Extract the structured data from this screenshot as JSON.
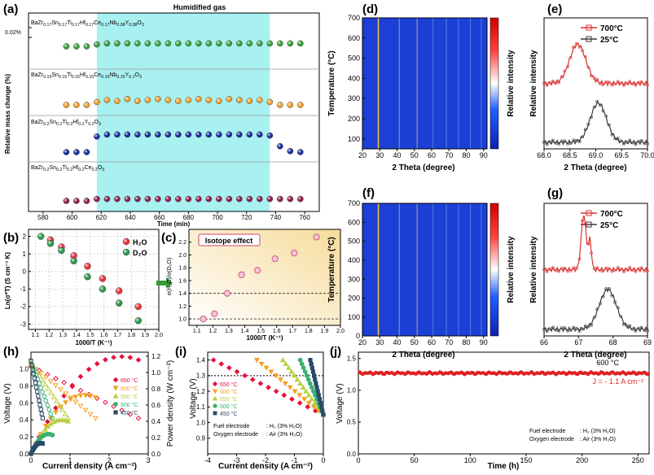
{
  "panels": {
    "a": "(a)",
    "b": "(b)",
    "c": "(c)",
    "d": "(d)",
    "e": "(e)",
    "f": "(f)",
    "g": "(g)",
    "h": "(h)",
    "i": "(i)",
    "j": "(j)"
  },
  "colors": {
    "a_green": "#3aa23a",
    "a_orange": "#f0a030",
    "a_blue": "#1a2f9e",
    "a_maroon": "#8e1f4e",
    "humid_band": "#a9f1f1",
    "heat_bg": "#1c3fd6",
    "h2o": "#e8343a",
    "d2o": "#2e9a4f",
    "c_marker": "#d86a8a",
    "e_low": "#3a3a3a",
    "e_high": "#d83030",
    "f650": "#e8103c",
    "f600": "#f5a020",
    "f550": "#b8d040",
    "f500": "#3ab070",
    "f450": "#2a4a6a",
    "j_line": "#e02020"
  },
  "chart_data": [
    {
      "panel": "a",
      "type": "scatter",
      "title": "Humidified gas",
      "xlabel": "Time (min)",
      "ylabel": "Relative mass change (%)",
      "xlim": [
        570,
        770
      ],
      "xticks": [
        580,
        600,
        620,
        640,
        660,
        680,
        700,
        720,
        740,
        760
      ],
      "scale_label": "0.02%",
      "humid_range": [
        617,
        736
      ],
      "series": [
        {
          "name": "BaZr0.17Sn0.17Ti0.17Hf0.17Ce0.17Nb0.08Y0.08O3",
          "base": "BaZr",
          "sub": "0.17",
          "rest": "Sn|0.17|Ti|0.17|Hf|0.17|Ce|0.17|Nb|0.08|Y|0.08|O|3",
          "color": "a_green",
          "x": [
            596,
            603,
            610,
            617,
            624,
            631,
            638,
            645,
            652,
            659,
            666,
            673,
            680,
            687,
            694,
            701,
            708,
            715,
            722,
            729,
            736,
            743,
            750,
            757
          ],
          "y": [
            0,
            0,
            0,
            0.2,
            0.3,
            0.3,
            0.3,
            0.3,
            0.3,
            0.3,
            0.3,
            0.3,
            0.3,
            0.3,
            0.3,
            0.3,
            0.3,
            0.3,
            0.3,
            0.3,
            0.3,
            0.3,
            0.3,
            0.3
          ]
        },
        {
          "name": "BaZr0.15Sn0.15Ti0.15Hf0.15Ce0.15Nb0.15Y0.1O3",
          "base": "BaZr",
          "sub": "0.15",
          "rest": "Sn|0.15|Ti|0.15|Hf|0.15|Ce|0.15|Nb|0.15|Y|0.1|O|3",
          "color": "a_orange",
          "x": [
            596,
            603,
            610,
            617,
            624,
            631,
            638,
            645,
            652,
            659,
            666,
            673,
            680,
            687,
            694,
            701,
            708,
            715,
            722,
            729,
            736,
            743,
            750,
            757
          ],
          "y": [
            0,
            0,
            0,
            0.3,
            0.5,
            0.4,
            0.6,
            0.4,
            0.5,
            0.6,
            0.5,
            0.4,
            0.5,
            0.6,
            0.5,
            0.4,
            0.6,
            0.5,
            0.4,
            0.5,
            0.3,
            0,
            0,
            0
          ]
        },
        {
          "name": "BaZr0.2Sn0.2Ti0.2Hf0.2Y0.2O3",
          "base": "BaZr",
          "sub": "0.2",
          "rest": "Sn|0.2|Ti|0.2|Hf|0.2|Y|0.2|O|3",
          "color": "a_blue",
          "x": [
            596,
            603,
            610,
            617,
            624,
            631,
            638,
            645,
            652,
            659,
            666,
            673,
            680,
            687,
            694,
            701,
            708,
            715,
            722,
            729,
            736,
            743,
            750,
            757
          ],
          "y": [
            0,
            0,
            0,
            1.6,
            1.8,
            1.8,
            1.8,
            1.8,
            1.8,
            1.8,
            1.8,
            1.8,
            1.8,
            1.8,
            1.8,
            1.8,
            1.8,
            1.8,
            1.8,
            1.8,
            1.7,
            0.6,
            0.1,
            0
          ]
        },
        {
          "name": "BaZr0.2Sn0.2Ti0.2Hf0.2Ce0.2O3",
          "base": "BaZr",
          "sub": "0.2",
          "rest": "Sn|0.2|Ti|0.2|Hf|0.2|Ce|0.2|O|3",
          "color": "a_maroon",
          "x": [
            596,
            603,
            610,
            617,
            624,
            631,
            638,
            645,
            652,
            659,
            666,
            673,
            680,
            687,
            694,
            701,
            708,
            715,
            722,
            729,
            736,
            743,
            750,
            757
          ],
          "y": [
            0,
            0,
            0,
            0.2,
            0.2,
            0.2,
            0.2,
            0.2,
            0.2,
            0.2,
            0.2,
            0.2,
            0.2,
            0.2,
            0.2,
            0.2,
            0.2,
            0.2,
            0.2,
            0.2,
            0.2,
            0.2,
            0.2,
            0.2
          ]
        }
      ]
    },
    {
      "panel": "b",
      "type": "scatter",
      "xlabel": "1000/T (K⁻¹)",
      "ylabel": "Ln(σ*T) (S cm⁻¹ K)",
      "xlim": [
        1.05,
        2.0
      ],
      "ylim": [
        -3.3,
        2.4
      ],
      "xticks": [
        "1.1",
        "1.2",
        "1.3",
        "1.4",
        "1.5",
        "1.6",
        "1.7",
        "1.8",
        "1.9",
        "2.0"
      ],
      "yticks": [
        "-3",
        "-2",
        "-1",
        "0",
        "1",
        "2"
      ],
      "series": [
        {
          "name": "H₂O",
          "color": "h2o",
          "x": [
            1.21,
            1.29,
            1.38,
            1.48,
            1.59,
            1.71,
            1.85
          ],
          "y": [
            1.8,
            1.4,
            0.9,
            0.3,
            -0.4,
            -1.1,
            -2.0
          ]
        },
        {
          "name": "D₂O",
          "color": "d2o",
          "x": [
            1.14,
            1.21,
            1.29,
            1.38,
            1.48,
            1.59,
            1.71,
            1.85
          ],
          "y": [
            2.0,
            1.6,
            1.2,
            0.6,
            -0.3,
            -1.0,
            -1.8,
            -2.8
          ]
        }
      ]
    },
    {
      "panel": "c",
      "type": "scatter",
      "title": "Isotope effect",
      "xlabel": "1000/T (K⁻¹)",
      "ylabel": "σ(H₂O)/σ(D₂O)",
      "xlim": [
        1.05,
        2.0
      ],
      "ylim": [
        0.9,
        2.4
      ],
      "xticks": [
        "1.1",
        "1.2",
        "1.3",
        "1.4",
        "1.5",
        "1.6",
        "1.7",
        "1.8",
        "1.9",
        "2.0"
      ],
      "yticks": [
        "1.0",
        "1.2",
        "1.4",
        "1.6",
        "1.8",
        "2.0",
        "2.2"
      ],
      "hlines": [
        1.0,
        1.4
      ],
      "x": [
        1.14,
        1.21,
        1.29,
        1.38,
        1.48,
        1.59,
        1.71,
        1.85
      ],
      "y": [
        1.0,
        1.08,
        1.4,
        1.69,
        1.76,
        1.94,
        2.03,
        2.28
      ]
    },
    {
      "panel": "d",
      "type": "heatmap",
      "xlabel": "2 Theta (degree)",
      "ylabel": "Temperature (°C)",
      "colorbar": "Relative intensity",
      "xlim": [
        20,
        92
      ],
      "ylim": [
        50,
        700
      ],
      "xticks": [
        "20",
        "30",
        "40",
        "50",
        "60",
        "70",
        "80",
        "90"
      ],
      "yticks": [
        "100",
        "200",
        "300",
        "400",
        "500",
        "600",
        "700"
      ],
      "peaks": [
        29.2,
        41.3,
        51.6,
        60.8,
        68.5,
        75.5,
        82.4,
        88.7
      ],
      "peak_strength": [
        1.0,
        0.45,
        0.55,
        0.2,
        0.3,
        0.2,
        0.15,
        0.15
      ]
    },
    {
      "panel": "e",
      "type": "line",
      "xlabel": "2 Theta (degree)",
      "ylabel": "Relative intensity",
      "xlim": [
        68.0,
        70.0
      ],
      "xticks": [
        "68.0",
        "68.5",
        "69.0",
        "69.5",
        "70.0"
      ],
      "series": [
        {
          "name": "25°C",
          "color": "e_low",
          "center": 69.05,
          "width": 0.22,
          "offset": 0.05,
          "height": 0.3
        },
        {
          "name": "700°C",
          "color": "e_high",
          "center": 68.65,
          "width": 0.22,
          "offset": 0.5,
          "height": 0.3
        }
      ]
    },
    {
      "panel": "f",
      "type": "heatmap",
      "xlabel": "2 Theta (degree)",
      "ylabel": "Temperature (°C)",
      "colorbar": "Relative intensity",
      "xlim": [
        20,
        92
      ],
      "ylim": [
        0,
        700
      ],
      "xticks": [
        "20",
        "30",
        "40",
        "50",
        "60",
        "70",
        "80",
        "90"
      ],
      "yticks": [
        "0",
        "100",
        "200",
        "300",
        "400",
        "500",
        "600",
        "700"
      ],
      "peaks": [
        29.2,
        41.3,
        51.6,
        60.8,
        68.5,
        75.5,
        82.4,
        88.7
      ],
      "peak_strength": [
        1.0,
        0.45,
        0.55,
        0.2,
        0.3,
        0.2,
        0.15,
        0.15
      ]
    },
    {
      "panel": "g",
      "type": "line",
      "xlabel": "2 Theta (degree)",
      "ylabel": "Relative intensity",
      "xlim": [
        66,
        69
      ],
      "xticks": [
        "66",
        "67",
        "68",
        "69"
      ],
      "series": [
        {
          "name": "25°C",
          "color": "e_low",
          "center": 67.85,
          "width": 0.35,
          "offset": 0.05,
          "height": 0.3
        },
        {
          "name": "700°C",
          "color": "e_high",
          "center": 67.15,
          "width": 0.1,
          "offset": 0.5,
          "height": 0.42
        }
      ]
    },
    {
      "panel": "h",
      "type": "line",
      "xlabel": "Current density (A cm⁻²)",
      "ylabel": "Voltage (V)",
      "y2label": "Power density (W cm⁻²)",
      "xlim": [
        0,
        3.0
      ],
      "ylim": [
        0,
        1.2
      ],
      "y2lim": [
        0,
        1.25
      ],
      "xticks": [
        "0",
        "1",
        "2",
        "3"
      ],
      "yticks": [
        "0.0",
        "0.2",
        "0.4",
        "0.6",
        "0.8",
        "1.0"
      ],
      "y2ticks": [
        "0.0",
        "0.2",
        "0.4",
        "0.6",
        "0.8",
        "1.0",
        "1.2"
      ],
      "series": [
        {
          "name": "650 °C",
          "color": "f650",
          "marker": "diamond",
          "jmax": 2.75,
          "ocv": 1.03
        },
        {
          "name": "600 °C",
          "color": "f600",
          "marker": "tri-down",
          "jmax": 1.65,
          "ocv": 1.05
        },
        {
          "name": "550 °C",
          "color": "f550",
          "marker": "tri-up",
          "jmax": 0.95,
          "ocv": 1.07
        },
        {
          "name": "500 °C",
          "color": "f500",
          "marker": "circle",
          "jmax": 0.55,
          "ocv": 1.09
        },
        {
          "name": "450 °C",
          "color": "f450",
          "marker": "square",
          "jmax": 0.3,
          "ocv": 1.1
        }
      ]
    },
    {
      "panel": "i",
      "type": "line",
      "xlabel": "Current density (A cm⁻²)",
      "ylabel": "Voltage (V)",
      "xlim": [
        -4,
        0
      ],
      "ylim": [
        0.8,
        1.45
      ],
      "xticks": [
        "-4",
        "-3",
        "-2",
        "-1",
        "0"
      ],
      "yticks": [
        "0.9",
        "1.0",
        "1.1",
        "1.2",
        "1.3",
        "1.4"
      ],
      "hline": 1.3,
      "note_left": [
        "Fuel electrode",
        "Oxygen electrode"
      ],
      "note_right": [
        ": H₂ (3% H₂O)",
        ": Air (3% H₂O)"
      ],
      "series": [
        {
          "name": "650 °C",
          "color": "f650",
          "marker": "diamond",
          "jmin": -3.8
        },
        {
          "name": "600 °C",
          "color": "f600",
          "marker": "tri-down",
          "jmin": -2.3
        },
        {
          "name": "550 °C",
          "color": "f550",
          "marker": "tri-up",
          "jmin": -1.4
        },
        {
          "name": "500 °C",
          "color": "f500",
          "marker": "circle",
          "jmin": -0.8
        },
        {
          "name": "450 °C",
          "color": "f450",
          "marker": "square",
          "jmin": -0.45
        }
      ]
    },
    {
      "panel": "j",
      "type": "line",
      "xlabel": "Time (h)",
      "ylabel": "Voltage (V)",
      "xlim": [
        0,
        260
      ],
      "ylim": [
        0,
        1.6
      ],
      "xticks": [
        "0",
        "50",
        "100",
        "150",
        "200",
        "250"
      ],
      "yticks": [
        "0.0",
        "0.5",
        "1.0",
        "1.5"
      ],
      "temp_label": "600 °C",
      "current_label": "J = - 1.1 A cm⁻²",
      "note_left": [
        "Fuel electrode",
        "Oxygen electrode"
      ],
      "note_right": [
        ": H₂ (3% H₂O)",
        ": Air (3% H₂O)"
      ],
      "voltage": 1.27
    }
  ]
}
